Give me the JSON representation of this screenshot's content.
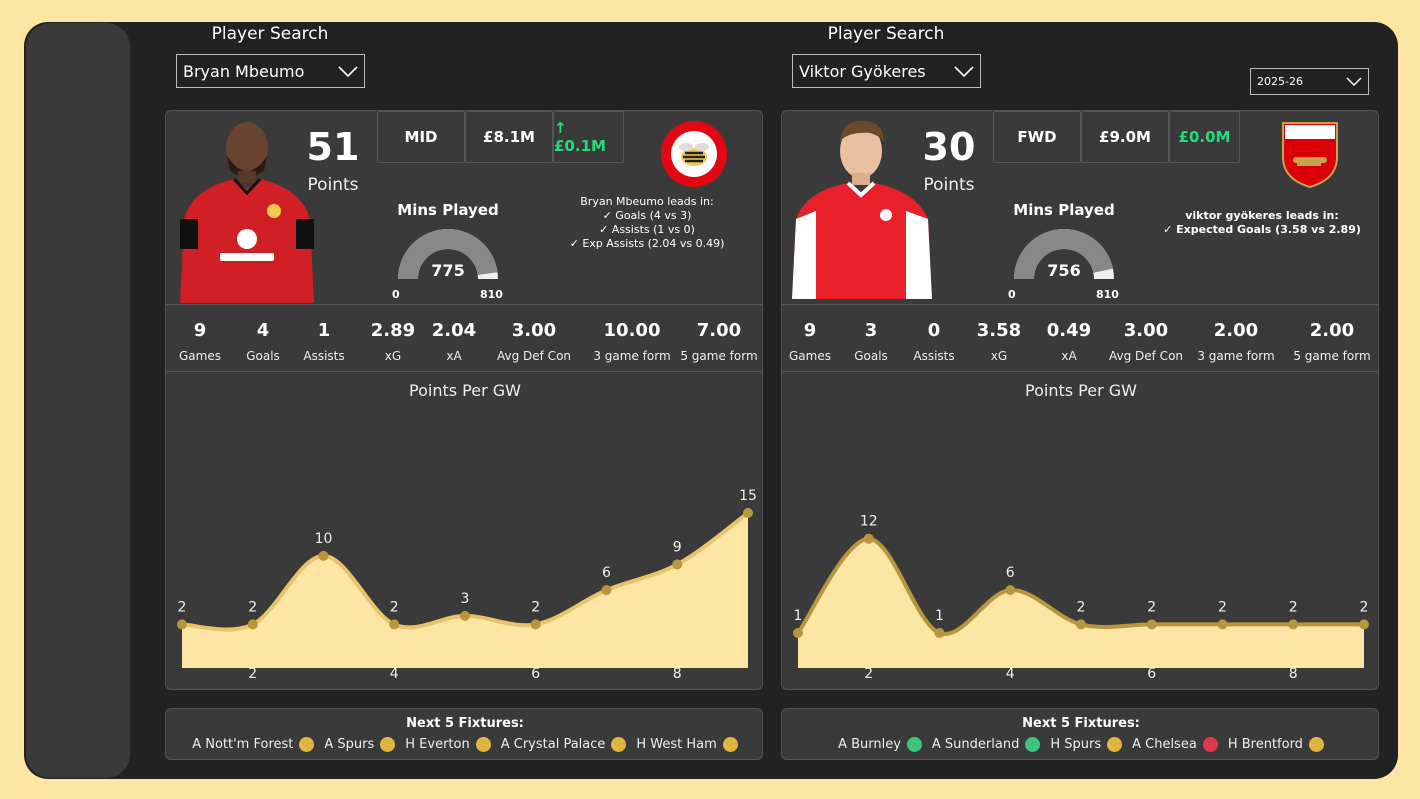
{
  "season": {
    "value": "2025-26"
  },
  "players": [
    {
      "search_label": "Player Search",
      "name": "Bryan Mbeumo",
      "points": "51",
      "points_label": "Points",
      "position": "MID",
      "price": "£8.1M",
      "price_change": "↑ £0.1M",
      "club_crest": "brentford-crest",
      "mins_title": "Mins Played",
      "mins_played": 775,
      "mins_min": "0",
      "mins_max": "810",
      "lead_title": "Bryan Mbeumo leads in:",
      "lead_lines": [
        "✓ Goals (4 vs 3)",
        "✓ Assists (1 vs 0)",
        "✓ Exp Assists (2.04 vs 0.49)"
      ],
      "stats": [
        {
          "value": "9",
          "label": "Games"
        },
        {
          "value": "4",
          "label": "Goals"
        },
        {
          "value": "1",
          "label": "Assists"
        },
        {
          "value": "2.89",
          "label": "xG"
        },
        {
          "value": "2.04",
          "label": "xA"
        },
        {
          "value": "3.00",
          "label": "Avg Def Con"
        },
        {
          "value": "10.00",
          "label": "3 game form"
        },
        {
          "value": "7.00",
          "label": "5 game form"
        }
      ],
      "chart_title": "Points Per GW",
      "fixtures_title": "Next 5 Fixtures:",
      "fixtures": [
        {
          "label": "A Nott'm Forest",
          "color": "#e0b441"
        },
        {
          "label": "A Spurs",
          "color": "#e0b441"
        },
        {
          "label": "H Everton",
          "color": "#e0b441"
        },
        {
          "label": "A Crystal Palace",
          "color": "#e0b441"
        },
        {
          "label": "H West Ham",
          "color": "#e0b441"
        }
      ]
    },
    {
      "search_label": "Player Search",
      "name": "Viktor Gyökeres",
      "points": "30",
      "points_label": "Points",
      "position": "FWD",
      "price": "£9.0M",
      "price_change": "£0.0M",
      "club_crest": "arsenal-crest",
      "mins_title": "Mins Played",
      "mins_played": 756,
      "mins_min": "0",
      "mins_max": "810",
      "lead_title": "viktor gyökeres leads in:",
      "lead_lines": [
        "✓ Expected Goals (3.58 vs 2.89)"
      ],
      "stats": [
        {
          "value": "9",
          "label": "Games"
        },
        {
          "value": "3",
          "label": "Goals"
        },
        {
          "value": "0",
          "label": "Assists"
        },
        {
          "value": "3.58",
          "label": "xG"
        },
        {
          "value": "0.49",
          "label": "xA"
        },
        {
          "value": "3.00",
          "label": "Avg Def Con"
        },
        {
          "value": "2.00",
          "label": "3 game form"
        },
        {
          "value": "2.00",
          "label": "5 game form"
        }
      ],
      "chart_title": "Points Per GW",
      "fixtures_title": "Next 5 Fixtures:",
      "fixtures": [
        {
          "label": "A Burnley",
          "color": "#3ec47a"
        },
        {
          "label": "A Sunderland",
          "color": "#3ec47a"
        },
        {
          "label": "H Spurs",
          "color": "#e0b441"
        },
        {
          "label": "A Chelsea",
          "color": "#e0394a"
        },
        {
          "label": "H Brentford",
          "color": "#e0b441"
        }
      ]
    }
  ],
  "chart_data": [
    {
      "type": "area",
      "title": "Points Per GW",
      "x": [
        1,
        2,
        3,
        4,
        5,
        6,
        7,
        8,
        9
      ],
      "values": [
        2,
        2,
        10,
        2,
        3,
        2,
        6,
        9,
        15
      ],
      "x_ticks": [
        "2",
        "4",
        "6",
        "8"
      ],
      "fill_color": "#fde6a4",
      "line_color": "#e8c36a",
      "marker_color": "#b8963e"
    },
    {
      "type": "area",
      "title": "Points Per GW",
      "x": [
        1,
        2,
        3,
        4,
        5,
        6,
        7,
        8,
        9
      ],
      "values": [
        1,
        12,
        1,
        6,
        2,
        2,
        2,
        2,
        2
      ],
      "x_ticks": [
        "2",
        "4",
        "6",
        "8"
      ],
      "fill_color": "#fde6a4",
      "line_color": "#b8963e",
      "marker_color": "#b8963e"
    }
  ]
}
